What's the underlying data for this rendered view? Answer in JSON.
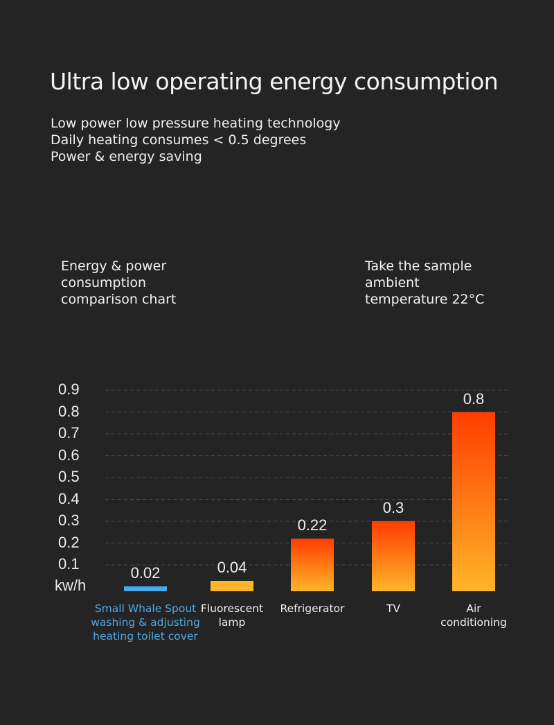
{
  "header": {
    "title": "Ultra low operating energy consumption",
    "subtitle_lines": [
      "Low power low pressure heating technology",
      "Daily heating consumes < 0.5 degrees",
      "Power & energy saving"
    ]
  },
  "notes": {
    "left_lines": [
      "Energy & power",
      "consumption",
      "comparison chart"
    ],
    "right_lines": [
      "Take the sample",
      "ambient",
      "temperature 22°C"
    ]
  },
  "colors": {
    "background": "#242424",
    "highlight_bar": "#45a9ee",
    "highlight_label": "#4fa8e6",
    "bar_top": "#ff3d00",
    "bar_bottom": "#ffb52a",
    "gridline": "#3d4d5a"
  },
  "chart_data": {
    "type": "bar",
    "title": "Energy & power consumption comparison chart",
    "ylabel": "kw/h",
    "xlabel": "",
    "ylim": [
      0,
      0.9
    ],
    "yticks": [
      "0.9",
      "0.8",
      "0.7",
      "0.6",
      "0.5",
      "0.4",
      "0.3",
      "0.2",
      "0.1"
    ],
    "y_unit_label": "kw/h",
    "grid": true,
    "categories": [
      "Small Whale Spout washing & adjusting heating toilet cover",
      "Fluorescent lamp",
      "Refrigerator",
      "TV",
      "Air conditioning"
    ],
    "category_label_lines": [
      [
        "Small Whale Spout",
        "washing & adjusting",
        "heating toilet cover"
      ],
      [
        "Fluorescent",
        "lamp"
      ],
      [
        "Refrigerator"
      ],
      [
        "TV"
      ],
      [
        "Air",
        "conditioning"
      ]
    ],
    "values": [
      0.02,
      0.04,
      0.22,
      0.3,
      0.8
    ],
    "value_labels": [
      "0.02",
      "0.04",
      "0.22",
      "0.3",
      "0.8"
    ],
    "highlighted_index": 0
  }
}
